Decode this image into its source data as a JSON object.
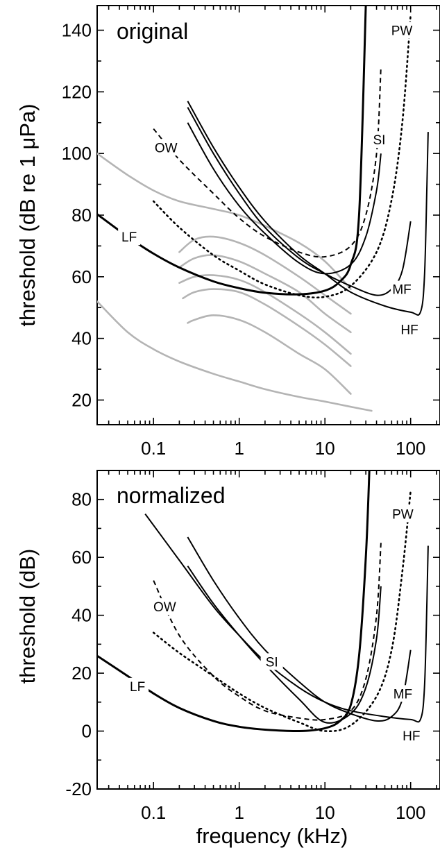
{
  "chart_data": [
    {
      "type": "line",
      "title": "original",
      "xlabel": "",
      "ylabel": "threshold (dB re 1 μPa)",
      "xscale": "log",
      "xlim": [
        0.022,
        220
      ],
      "ylim": [
        12,
        148
      ],
      "xticks": [
        0.1,
        1,
        10,
        100
      ],
      "xtick_labels": [
        "0.1",
        "1",
        "10",
        "100"
      ],
      "yticks": [
        20,
        40,
        60,
        80,
        100,
        120,
        140
      ],
      "ytick_labels": [
        "20",
        "40",
        "60",
        "80",
        "100",
        "120",
        "140"
      ],
      "colors": {
        "curve": "#000000",
        "audiogram": "#b4b4b4"
      },
      "series": [
        {
          "name": "LF",
          "style": "solid-thick",
          "x": [
            0.022,
            0.05,
            0.1,
            0.2,
            0.5,
            1,
            2,
            5,
            10,
            15,
            20,
            25,
            30
          ],
          "y": [
            80.3,
            73,
            67.5,
            63,
            58.5,
            56.3,
            54.8,
            54.3,
            55.5,
            58.5,
            64,
            80,
            148
          ]
        },
        {
          "name": "MF",
          "style": "solid",
          "x": [
            0.25,
            0.5,
            1,
            2,
            5,
            10,
            20,
            40,
            60,
            80,
            100
          ],
          "y": [
            115,
            100,
            87,
            76,
            66,
            61,
            57,
            54,
            56,
            62,
            78
          ]
        },
        {
          "name": "HF",
          "style": "solid",
          "x": [
            0.25,
            0.5,
            1,
            2,
            5,
            10,
            20,
            50,
            100,
            130,
            145,
            155,
            160
          ],
          "y": [
            117,
            102,
            89,
            78,
            67,
            61,
            55,
            50.5,
            48.5,
            48.5,
            60,
            90,
            107
          ]
        },
        {
          "name": "OW",
          "style": "dashed",
          "x": [
            0.1,
            0.2,
            0.5,
            1,
            2,
            5,
            10,
            20,
            30,
            40,
            45
          ],
          "y": [
            108,
            98,
            87,
            79,
            73,
            68,
            66.5,
            70,
            80,
            100,
            128
          ]
        },
        {
          "name": "PW",
          "style": "dotted",
          "x": [
            0.1,
            0.2,
            0.5,
            1,
            2,
            5,
            10,
            20,
            40,
            60,
            80,
            100
          ],
          "y": [
            84.5,
            76,
            67,
            62,
            57.5,
            54,
            53.5,
            57,
            68,
            85,
            110,
            145
          ]
        },
        {
          "name": "SI",
          "style": "solid",
          "x": [
            0.25,
            0.5,
            1,
            2,
            5,
            10,
            20,
            30,
            40,
            45
          ],
          "y": [
            110,
            95,
            83,
            74,
            64.5,
            61,
            64,
            73,
            88,
            100
          ]
        }
      ],
      "audiograms": [
        {
          "x": [
            0.022,
            0.05,
            0.1,
            0.2,
            0.5,
            1,
            2,
            5,
            10,
            20,
            35
          ],
          "y": [
            52,
            42,
            36.5,
            32.5,
            28.5,
            26,
            23.5,
            21,
            19.5,
            17.8,
            16.5
          ]
        },
        {
          "x": [
            0.022,
            0.05,
            0.1,
            0.2,
            0.5,
            1,
            2,
            5,
            10,
            20
          ],
          "y": [
            100,
            93,
            88,
            84.5,
            82,
            80,
            76.5,
            71,
            65,
            56
          ]
        },
        {
          "x": [
            0.2,
            0.3,
            0.5,
            1,
            2,
            5,
            10,
            20
          ],
          "y": [
            68,
            72,
            73,
            71,
            67,
            60,
            54,
            48
          ]
        },
        {
          "x": [
            0.2,
            0.3,
            0.5,
            1,
            2,
            5,
            10,
            20
          ],
          "y": [
            63,
            66,
            67,
            65,
            61,
            55,
            48,
            42
          ]
        },
        {
          "x": [
            0.2,
            0.3,
            0.5,
            1,
            2,
            5,
            10,
            20
          ],
          "y": [
            58,
            60,
            60.5,
            59,
            55,
            48,
            42,
            35
          ]
        },
        {
          "x": [
            0.22,
            0.3,
            0.5,
            1,
            2,
            5,
            10,
            20
          ],
          "y": [
            53,
            55,
            56,
            55,
            51,
            44,
            38,
            31
          ]
        },
        {
          "x": [
            0.25,
            0.3,
            0.5,
            1,
            2,
            5,
            10,
            20
          ],
          "y": [
            45,
            46,
            47.5,
            46,
            42,
            35,
            30,
            22
          ]
        }
      ],
      "labels": [
        {
          "text": "OW",
          "x": 0.14,
          "y": 102
        },
        {
          "text": "LF",
          "x": 0.052,
          "y": 73
        },
        {
          "text": "PW",
          "x": 79,
          "y": 140
        },
        {
          "text": "SI",
          "x": 43,
          "y": 104.5
        },
        {
          "text": "MF",
          "x": 79,
          "y": 56
        },
        {
          "text": "HF",
          "x": 97,
          "y": 43
        }
      ]
    },
    {
      "type": "line",
      "title": "normalized",
      "xlabel": "frequency (kHz)",
      "ylabel": "threshold (dB)",
      "xscale": "log",
      "xlim": [
        0.022,
        220
      ],
      "ylim": [
        -20,
        90
      ],
      "xticks": [
        0.1,
        1,
        10,
        100
      ],
      "xtick_labels": [
        "0.1",
        "1",
        "10",
        "100"
      ],
      "yticks": [
        -20,
        0,
        20,
        40,
        60,
        80
      ],
      "ytick_labels": [
        "-20",
        "0",
        "20",
        "40",
        "60",
        "80"
      ],
      "colors": {
        "curve": "#000000"
      },
      "series": [
        {
          "name": "LF",
          "style": "solid-thick",
          "x": [
            0.022,
            0.05,
            0.1,
            0.2,
            0.5,
            1,
            2,
            5,
            10,
            15,
            20,
            25,
            30,
            33
          ],
          "y": [
            26,
            19,
            13,
            8,
            3.5,
            1.5,
            0.5,
            0,
            1,
            3.5,
            9,
            26,
            60,
            90
          ]
        },
        {
          "name": "MF",
          "style": "solid",
          "x": [
            0.25,
            0.5,
            1,
            2,
            5,
            10,
            20,
            40,
            60,
            80,
            100
          ],
          "y": [
            67,
            52,
            39,
            28,
            17,
            10,
            6,
            3.5,
            5,
            11,
            28
          ]
        },
        {
          "name": "HF",
          "style": "solid",
          "x": [
            0.08,
            0.2,
            0.5,
            1,
            2,
            5,
            10,
            20,
            50,
            100,
            130,
            145,
            155,
            160
          ],
          "y": [
            75,
            59,
            43,
            33,
            24,
            15,
            10,
            7,
            5,
            4,
            4,
            15,
            45,
            64
          ]
        },
        {
          "name": "OW",
          "style": "dashed",
          "x": [
            0.1,
            0.2,
            0.5,
            1,
            2,
            5,
            10,
            20,
            30,
            40,
            45
          ],
          "y": [
            52,
            33,
            19,
            12,
            7,
            4.5,
            4,
            7,
            18,
            40,
            65
          ]
        },
        {
          "name": "PW",
          "style": "dotted",
          "x": [
            0.1,
            0.2,
            0.5,
            1,
            2,
            5,
            10,
            20,
            40,
            60,
            80,
            100
          ],
          "y": [
            34,
            27,
            19,
            13,
            8,
            3,
            0,
            2,
            12,
            28,
            55,
            83
          ]
        },
        {
          "name": "SI",
          "style": "solid",
          "x": [
            0.25,
            0.5,
            1,
            2,
            5,
            10,
            20,
            30,
            40,
            45
          ],
          "y": [
            57,
            44,
            33,
            23,
            11,
            3,
            6,
            15,
            32,
            50
          ]
        }
      ],
      "labels": [
        {
          "text": "OW",
          "x": 0.135,
          "y": 43
        },
        {
          "text": "LF",
          "x": 0.065,
          "y": 15.5
        },
        {
          "text": "PW",
          "x": 81,
          "y": 75
        },
        {
          "text": "SI",
          "x": 2.4,
          "y": 24
        },
        {
          "text": "MF",
          "x": 81,
          "y": 13
        },
        {
          "text": "HF",
          "x": 102,
          "y": -1.5
        }
      ]
    }
  ]
}
